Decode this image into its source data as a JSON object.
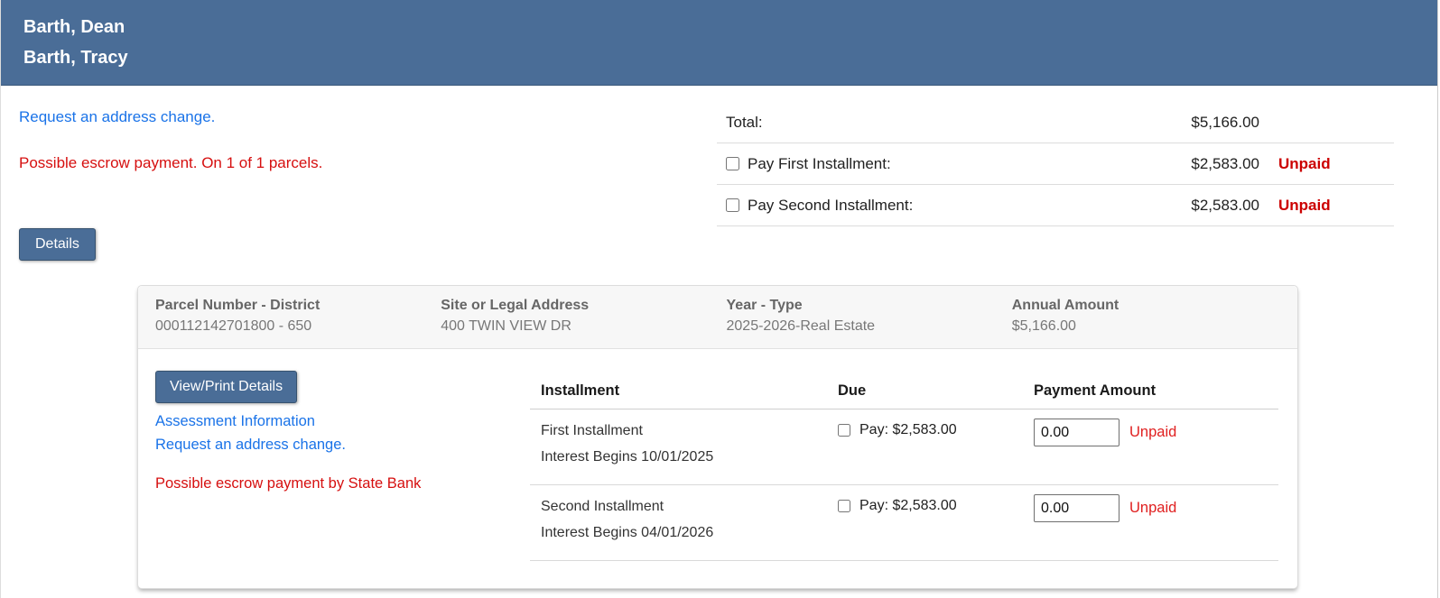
{
  "header": {
    "names": [
      "Barth, Dean",
      "Barth, Tracy"
    ]
  },
  "links": {
    "request_address_change": "Request an address change."
  },
  "alerts": {
    "escrow_summary": "Possible escrow payment. On 1 of 1 parcels.",
    "escrow_detail": "Possible escrow payment by State Bank"
  },
  "totals": {
    "rows": [
      {
        "label": "Total:",
        "amount": "$5,166.00",
        "status": ""
      },
      {
        "label": "Pay First Installment:",
        "amount": "$2,583.00",
        "status": "Unpaid"
      },
      {
        "label": "Pay Second Installment:",
        "amount": "$2,583.00",
        "status": "Unpaid"
      }
    ]
  },
  "details_button": "Details",
  "parcel": {
    "header_cols": [
      {
        "label": "Parcel Number - District",
        "value": "000112142701800 - 650"
      },
      {
        "label": "Site or Legal Address",
        "value": "400 TWIN VIEW DR"
      },
      {
        "label": "Year - Type",
        "value": "2025-2026-Real Estate"
      },
      {
        "label": "Annual Amount",
        "value": "$5,166.00"
      }
    ],
    "view_print_button": "View/Print Details",
    "links": [
      "Assessment Information",
      "Request an address change."
    ],
    "table": {
      "columns": [
        "Installment",
        "Due",
        "Payment Amount"
      ],
      "rows": [
        {
          "name": "First Installment",
          "interest": "Interest Begins 10/01/2025",
          "pay_label": "Pay: $2,583.00",
          "amount_value": "0.00",
          "status": "Unpaid"
        },
        {
          "name": "Second Installment",
          "interest": "Interest Begins 04/01/2026",
          "pay_label": "Pay: $2,583.00",
          "amount_value": "0.00",
          "status": "Unpaid"
        }
      ]
    }
  },
  "colors": {
    "header_bg": "#4a6d97",
    "button_bg": "#4a6d97",
    "link_blue": "#1a73e8",
    "alert_red": "#d60f0f",
    "unpaid_bold_red": "#cc0000",
    "card_head_bg": "#f7f7f7"
  }
}
